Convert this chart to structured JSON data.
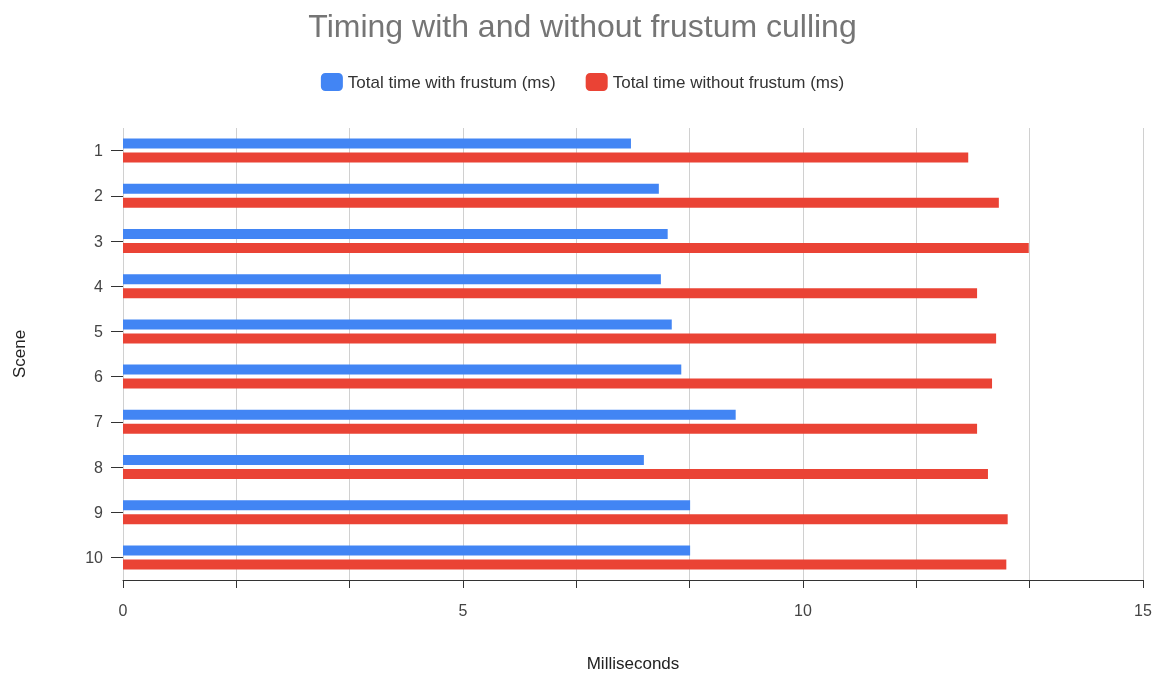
{
  "chart_data": {
    "type": "bar",
    "orientation": "horizontal",
    "title": "Timing with and without frustum culling",
    "xlabel": "Milliseconds",
    "ylabel": "Scene",
    "categories": [
      "1",
      "2",
      "3",
      "4",
      "5",
      "6",
      "7",
      "8",
      "9",
      "10"
    ],
    "series": [
      {
        "name": "Total time with frustum (ms)",
        "color": "#4285f4",
        "values": [
          7.47,
          7.88,
          8.01,
          7.91,
          8.07,
          8.21,
          9.01,
          7.66,
          8.34,
          8.34
        ]
      },
      {
        "name": "Total time without frustum (ms)",
        "color": "#ea4335",
        "values": [
          12.43,
          12.88,
          13.32,
          12.56,
          12.84,
          12.78,
          12.56,
          12.72,
          13.01,
          12.99
        ]
      }
    ],
    "xlim": [
      0,
      15
    ],
    "xticks": [
      0,
      {
        "value": 1.667,
        "label": null
      },
      {
        "value": 3.333,
        "label": null
      },
      5,
      {
        "value": 6.667,
        "label": null
      },
      {
        "value": 8.333,
        "label": null
      },
      10,
      {
        "value": 11.667,
        "label": null
      },
      {
        "value": 13.333,
        "label": null
      },
      15
    ],
    "grid": "x",
    "legend": "top"
  }
}
